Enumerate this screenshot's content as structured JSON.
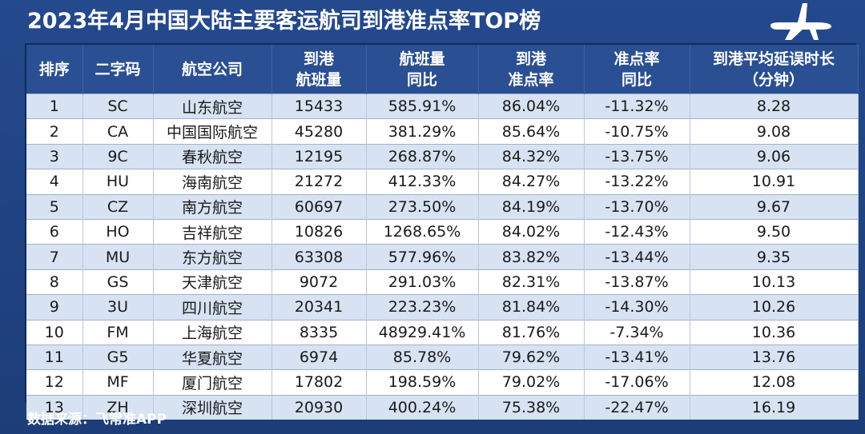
{
  "title": "2023年4月中国大陆主要客运航司到港准点率TOP榜",
  "source": {
    "label": "数据来源：",
    "value": "飞常准APP"
  },
  "icons": {
    "header_icon": "airplane-icon"
  },
  "colors": {
    "background": "#24498d",
    "header": "#2a4f92",
    "row_alt": "#d7e2f2"
  },
  "headers": [
    {
      "l1": "排序",
      "l2": ""
    },
    {
      "l1": "二字码",
      "l2": ""
    },
    {
      "l1": "航空公司",
      "l2": ""
    },
    {
      "l1": "到港",
      "l2": "航班量"
    },
    {
      "l1": "航班量",
      "l2": "同比"
    },
    {
      "l1": "到港",
      "l2": "准点率"
    },
    {
      "l1": "准点率",
      "l2": "同比"
    },
    {
      "l1": "到港平均延误时长",
      "l2": "（分钟）"
    }
  ],
  "rows": [
    [
      "1",
      "SC",
      "山东航空",
      "15433",
      "585.91%",
      "86.04%",
      "-11.32%",
      "8.28"
    ],
    [
      "2",
      "CA",
      "中国国际航空",
      "45280",
      "381.29%",
      "85.64%",
      "-10.75%",
      "9.08"
    ],
    [
      "3",
      "9C",
      "春秋航空",
      "12195",
      "268.87%",
      "84.32%",
      "-13.75%",
      "9.06"
    ],
    [
      "4",
      "HU",
      "海南航空",
      "21272",
      "412.33%",
      "84.27%",
      "-13.22%",
      "10.91"
    ],
    [
      "5",
      "CZ",
      "南方航空",
      "60697",
      "273.50%",
      "84.19%",
      "-13.70%",
      "9.67"
    ],
    [
      "6",
      "HO",
      "吉祥航空",
      "10826",
      "1268.65%",
      "84.02%",
      "-12.43%",
      "9.50"
    ],
    [
      "7",
      "MU",
      "东方航空",
      "63308",
      "577.96%",
      "83.82%",
      "-13.44%",
      "9.35"
    ],
    [
      "8",
      "GS",
      "天津航空",
      "9072",
      "291.03%",
      "82.31%",
      "-13.87%",
      "10.13"
    ],
    [
      "9",
      "3U",
      "四川航空",
      "20341",
      "223.23%",
      "81.84%",
      "-14.30%",
      "10.26"
    ],
    [
      "10",
      "FM",
      "上海航空",
      "8335",
      "48929.41%",
      "81.76%",
      "-7.34%",
      "10.36"
    ],
    [
      "11",
      "G5",
      "华夏航空",
      "6974",
      "85.78%",
      "79.62%",
      "-13.41%",
      "13.76"
    ],
    [
      "12",
      "MF",
      "厦门航空",
      "17802",
      "198.59%",
      "79.02%",
      "-17.06%",
      "12.08"
    ],
    [
      "13",
      "ZH",
      "深圳航空",
      "20930",
      "400.24%",
      "75.38%",
      "-22.47%",
      "16.19"
    ]
  ]
}
